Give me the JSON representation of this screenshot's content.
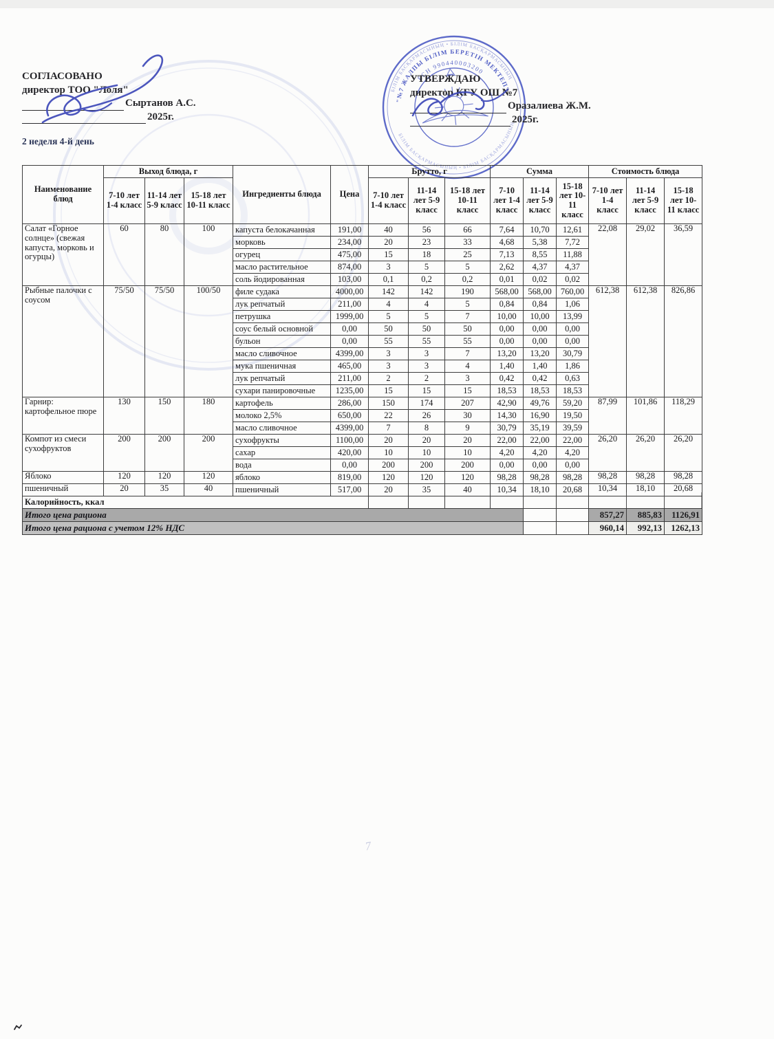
{
  "page": {
    "subtitle": "2 неделя 4-й день"
  },
  "approval": {
    "left": {
      "title": "СОГЛАСОВАНО",
      "role": "директор ТОО \"Лоля\"",
      "name": "Сыртанов А.С.",
      "year": "2025г."
    },
    "right": {
      "title": "УТВЕРЖДАЮ",
      "role": "директор КГУ ОШ №7",
      "name": "Оразалиева Ж.М.",
      "year": "2025г."
    }
  },
  "stamp": {
    "school_text": "\"№7 ЖАЛПЫ БІЛІМ БЕРЕТІН МЕКТЕП\"",
    "bin_text": "БСН 990440003200",
    "outer_text": "БІЛІМ БАСҚАРМАСЫНЫҢ  •  БІЛІМ БАСҚАРМАСЫНЫҢ"
  },
  "table": {
    "headers": {
      "name": "Наименование блюд",
      "output_group": "Выход блюда, г",
      "ingredients": "Ингредиенты блюда",
      "price": "Цена",
      "brutto_group": "Брутто, г",
      "sum_group": "Сумма",
      "cost_group": "Стоимость блюда",
      "age_classes": [
        "7-10 лет 1-4 класс",
        "11-14 лет 5-9 класс",
        "15-18 лет 10-11 класс"
      ]
    },
    "dishes": [
      {
        "name": "Салат «Горное солнце» (свежая капуста, морковь и огурцы)",
        "out": [
          "60",
          "80",
          "100"
        ],
        "cost": [
          "22,08",
          "29,02",
          "36,59"
        ],
        "ingredients": [
          [
            "капуста белокачанная",
            "191,00",
            "40",
            "56",
            "66",
            "7,64",
            "10,70",
            "12,61"
          ],
          [
            "морковь",
            "234,00",
            "20",
            "23",
            "33",
            "4,68",
            "5,38",
            "7,72"
          ],
          [
            "огурец",
            "475,00",
            "15",
            "18",
            "25",
            "7,13",
            "8,55",
            "11,88"
          ],
          [
            "масло растительное",
            "874,00",
            "3",
            "5",
            "5",
            "2,62",
            "4,37",
            "4,37"
          ],
          [
            "соль йодированная",
            "103,00",
            "0,1",
            "0,2",
            "0,2",
            "0,01",
            "0,02",
            "0,02"
          ]
        ]
      },
      {
        "name": "Рыбные палочки с соусом",
        "out": [
          "75/50",
          "75/50",
          "100/50"
        ],
        "cost": [
          "612,38",
          "612,38",
          "826,86"
        ],
        "ingredients": [
          [
            "филе судака",
            "4000,00",
            "142",
            "142",
            "190",
            "568,00",
            "568,00",
            "760,00"
          ],
          [
            "лук репчатый",
            "211,00",
            "4",
            "4",
            "5",
            "0,84",
            "0,84",
            "1,06"
          ],
          [
            "петрушка",
            "1999,00",
            "5",
            "5",
            "7",
            "10,00",
            "10,00",
            "13,99"
          ],
          [
            "соус белый основной",
            "0,00",
            "50",
            "50",
            "50",
            "0,00",
            "0,00",
            "0,00"
          ],
          [
            "бульон",
            "0,00",
            "55",
            "55",
            "55",
            "0,00",
            "0,00",
            "0,00"
          ],
          [
            "масло сливочное",
            "4399,00",
            "3",
            "3",
            "7",
            "13,20",
            "13,20",
            "30,79"
          ],
          [
            "мука пшеничная",
            "465,00",
            "3",
            "3",
            "4",
            "1,40",
            "1,40",
            "1,86"
          ],
          [
            "лук репчатый",
            "211,00",
            "2",
            "2",
            "3",
            "0,42",
            "0,42",
            "0,63"
          ],
          [
            "сухари панировочные",
            "1235,00",
            "15",
            "15",
            "15",
            "18,53",
            "18,53",
            "18,53"
          ]
        ]
      },
      {
        "name": "Гарнир: картофельное пюре",
        "out": [
          "130",
          "150",
          "180"
        ],
        "cost": [
          "87,99",
          "101,86",
          "118,29"
        ],
        "ingredients": [
          [
            "картофель",
            "286,00",
            "150",
            "174",
            "207",
            "42,90",
            "49,76",
            "59,20"
          ],
          [
            "молоко 2,5%",
            "650,00",
            "22",
            "26",
            "30",
            "14,30",
            "16,90",
            "19,50"
          ],
          [
            "масло сливочное",
            "4399,00",
            "7",
            "8",
            "9",
            "30,79",
            "35,19",
            "39,59"
          ]
        ]
      },
      {
        "name": "Компот из смеси сухофруктов",
        "out": [
          "200",
          "200",
          "200"
        ],
        "cost": [
          "26,20",
          "26,20",
          "26,20"
        ],
        "ingredients": [
          [
            "сухофрукты",
            "1100,00",
            "20",
            "20",
            "20",
            "22,00",
            "22,00",
            "22,00"
          ],
          [
            "сахар",
            "420,00",
            "10",
            "10",
            "10",
            "4,20",
            "4,20",
            "4,20"
          ],
          [
            "вода",
            "0,00",
            "200",
            "200",
            "200",
            "0,00",
            "0,00",
            "0,00"
          ]
        ]
      },
      {
        "name": "Яблоко",
        "out": [
          "120",
          "120",
          "120"
        ],
        "cost": [
          "98,28",
          "98,28",
          "98,28"
        ],
        "ingredients": [
          [
            "яблоко",
            "819,00",
            "120",
            "120",
            "120",
            "98,28",
            "98,28",
            "98,28"
          ]
        ]
      },
      {
        "name": "пшеничный",
        "out": [
          "20",
          "35",
          "40"
        ],
        "cost": [
          "10,34",
          "18,10",
          "20,68"
        ],
        "ingredients": [
          [
            "пшеничный",
            "517,00",
            "20",
            "35",
            "40",
            "10,34",
            "18,10",
            "20,68"
          ]
        ]
      }
    ],
    "calorie_label": "Калорийность, ккал",
    "totals": [
      {
        "label": "Итого цена рациона",
        "values": [
          "857,27",
          "885,83",
          "1126,91"
        ]
      },
      {
        "label": "Итого цена рациона с учетом 12% НДС",
        "values": [
          "960,14",
          "992,13",
          "1262,13"
        ]
      }
    ]
  },
  "artifacts": {
    "faint_mark": "7"
  }
}
